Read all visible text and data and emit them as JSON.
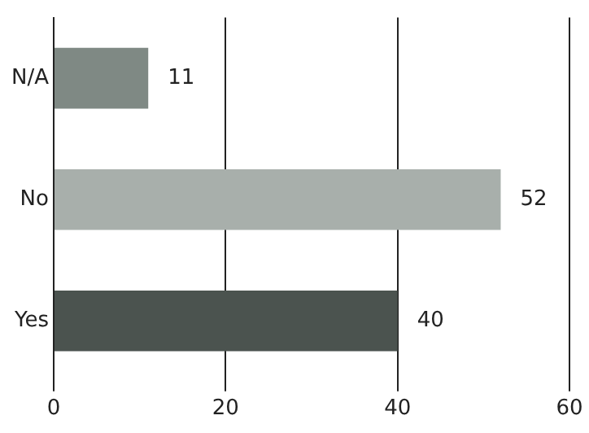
{
  "chart_data": {
    "type": "bar",
    "orientation": "horizontal",
    "categories": [
      "N/A",
      "No",
      "Yes"
    ],
    "values": [
      11,
      52,
      40
    ],
    "colors": [
      "#7f8984",
      "#a8afab",
      "#4b534f"
    ],
    "xlim": [
      0,
      60
    ],
    "xticks": [
      0,
      20,
      40,
      60
    ],
    "grid": "x",
    "data_labels": true,
    "legend": false
  }
}
